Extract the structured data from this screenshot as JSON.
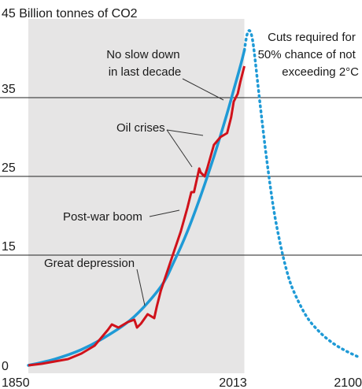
{
  "chart_data": {
    "type": "line",
    "title": "45 Billion tonnes of CO2",
    "x_tick_labels": [
      "1850",
      "2013",
      "2100"
    ],
    "y_tick_labels": [
      "0",
      "15",
      "25",
      "35"
    ],
    "y_ticks": [
      0,
      15,
      25,
      35
    ],
    "xlim": [
      1850,
      2100
    ],
    "ylim": [
      0,
      45
    ],
    "grid": "horizontal",
    "shaded_range": [
      1850,
      2013
    ],
    "colors": {
      "actual": "#d0121b",
      "trend": "#1f9ad6",
      "shade": "#e6e5e5",
      "grid": "#222222"
    },
    "series": [
      {
        "role": "actual",
        "x": [
          1850,
          1860,
          1870,
          1880,
          1890,
          1900,
          1905,
          1910,
          1913,
          1918,
          1920,
          1925,
          1930,
          1932,
          1935,
          1940,
          1945,
          1947,
          1950,
          1955,
          1960,
          1965,
          1970,
          1973,
          1975,
          1979,
          1980,
          1983,
          1985,
          1990,
          1995,
          2000,
          2003,
          2005,
          2008,
          2010,
          2013
        ],
        "y": [
          1,
          1.2,
          1.5,
          1.8,
          2.5,
          3.5,
          4.5,
          5.5,
          6.2,
          5.8,
          6.0,
          6.5,
          6.8,
          5.8,
          6.3,
          7.5,
          7.0,
          8.5,
          10.5,
          13.0,
          15.5,
          18.0,
          21.0,
          23.0,
          23.0,
          26.0,
          25.5,
          25.0,
          26.0,
          29.0,
          30.0,
          30.5,
          32.5,
          34.5,
          35.5,
          37.0,
          39.0
        ]
      },
      {
        "role": "trend",
        "x": [
          1850,
          1870,
          1890,
          1910,
          1930,
          1950,
          1960,
          1970,
          1980,
          1990,
          2000,
          2005,
          2010,
          2013
        ],
        "y": [
          1,
          1.8,
          3.0,
          4.8,
          7.2,
          11.0,
          14.2,
          18.0,
          22.5,
          27.5,
          33.0,
          36.0,
          39.0,
          41.0
        ]
      },
      {
        "role": "required-cuts",
        "x": [
          2013,
          2015,
          2017,
          2019,
          2021,
          2025,
          2030,
          2035,
          2040,
          2045,
          2050,
          2060,
          2070,
          2080,
          2090,
          2100
        ],
        "y": [
          41.0,
          43.0,
          43.5,
          42.5,
          40.0,
          34.0,
          27.0,
          21.0,
          16.5,
          13.0,
          10.5,
          7.2,
          5.2,
          3.8,
          2.8,
          2.0
        ]
      }
    ],
    "annotations": [
      {
        "id": "no-slow-down",
        "line1": "No slow down",
        "line2": "in last decade"
      },
      {
        "id": "oil-crises",
        "text": "Oil crises"
      },
      {
        "id": "post-war-boom",
        "text": "Post-war boom"
      },
      {
        "id": "great-depression",
        "text": "Great depression"
      },
      {
        "id": "cuts-required",
        "line1": "Cuts required for",
        "line2": "50% chance of not",
        "line3": "exceeding 2°C"
      }
    ]
  }
}
